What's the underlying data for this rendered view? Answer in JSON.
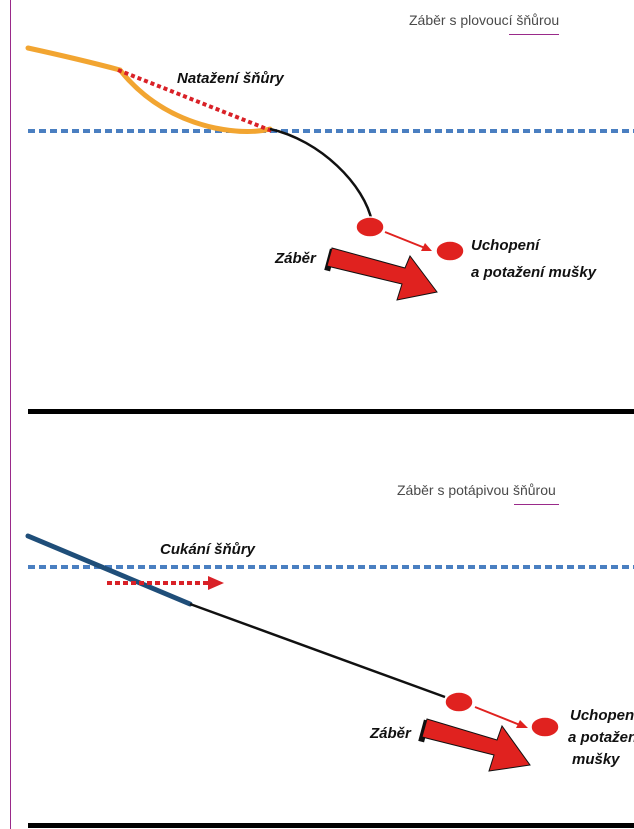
{
  "top_diagram": {
    "caption": "Záběr s plovoucí šňůrou",
    "line_tension_label": "Natažení šňůry",
    "strike_label": "Záběr",
    "take_label_line1": "Uchopení",
    "take_label_line2": "a potažení mušky",
    "colors": {
      "floating_line": "#f2a531",
      "leader": "#111111",
      "tension_line": "#d92127",
      "water_surface": "#4a7fc1",
      "fly": "#e0221f",
      "strike_arrow": "#e0221f"
    }
  },
  "bottom_diagram": {
    "caption": "Záběr s potápivou šňůrou",
    "line_twitch_label": "Cukání šňůry",
    "strike_label": "Záběr",
    "take_label_line1": "Uchopení",
    "take_label_line2": "a potažení",
    "take_label_line3": "mušky",
    "colors": {
      "sinking_line": "#1f4e79",
      "leader": "#111111",
      "twitch_arrow": "#d92127",
      "water_surface": "#4a7fc1",
      "fly": "#e0221f",
      "strike_arrow": "#e0221f"
    }
  },
  "accent_color": "#9a2a8a"
}
